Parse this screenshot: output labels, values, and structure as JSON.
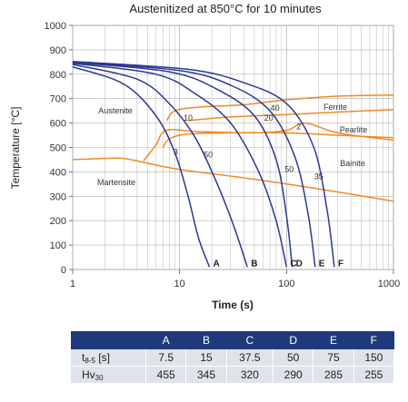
{
  "chart_data": {
    "type": "line",
    "title": "Austenitized at 850°C for 10 minutes",
    "xlabel": "Time (s)",
    "ylabel": "Temperature [°C]",
    "xscale": "log",
    "xlim": [
      1,
      1000
    ],
    "ylim": [
      0,
      1000
    ],
    "x_ticks": [
      "1",
      "10",
      "100",
      "1000"
    ],
    "y_ticks": [
      "0",
      "100",
      "200",
      "300",
      "400",
      "500",
      "600",
      "700",
      "800",
      "900",
      "1000"
    ],
    "grid": true,
    "phase_labels": [
      "Austenite",
      "Ferrite",
      "Pearlite",
      "Bainite",
      "Martensite"
    ],
    "cooling_curves": [
      {
        "name": "A",
        "x": [
          1,
          3,
          6,
          9,
          12,
          15,
          19
        ],
        "y": [
          830,
          760,
          630,
          480,
          300,
          130,
          10
        ]
      },
      {
        "name": "B",
        "x": [
          1,
          4,
          8,
          14,
          22,
          32,
          43
        ],
        "y": [
          840,
          780,
          680,
          540,
          360,
          180,
          10
        ]
      },
      {
        "name": "C",
        "x": [
          1,
          6,
          14,
          30,
          55,
          80,
          100
        ],
        "y": [
          845,
          800,
          720,
          600,
          400,
          200,
          10
        ]
      },
      {
        "name": "D",
        "x": [
          1,
          8,
          22,
          50,
          80,
          100,
          113
        ],
        "y": [
          848,
          810,
          740,
          630,
          450,
          220,
          10
        ]
      },
      {
        "name": "E",
        "x": [
          1,
          10,
          30,
          70,
          120,
          160,
          185
        ],
        "y": [
          850,
          815,
          755,
          650,
          460,
          220,
          10
        ]
      },
      {
        "name": "F",
        "x": [
          1,
          12,
          40,
          100,
          180,
          240,
          280
        ],
        "y": [
          852,
          820,
          765,
          680,
          500,
          240,
          10
        ]
      }
    ],
    "curve_labels": [
      {
        "text": "3",
        "x": 9.2,
        "y": 470
      },
      {
        "text": "10",
        "x": 12,
        "y": 610
      },
      {
        "text": "50",
        "x": 18.5,
        "y": 460
      },
      {
        "text": "20",
        "x": 68,
        "y": 610
      },
      {
        "text": "40",
        "x": 78,
        "y": 650
      },
      {
        "text": "2",
        "x": 130,
        "y": 575
      },
      {
        "text": "50",
        "x": 106,
        "y": 400
      },
      {
        "text": "35",
        "x": 200,
        "y": 370
      }
    ],
    "transformation_lines": [
      {
        "name": "Ferrite start",
        "x": [
          7.6,
          9,
          15,
          40,
          100,
          300,
          1000
        ],
        "y": [
          610,
          650,
          665,
          675,
          695,
          710,
          715
        ]
      },
      {
        "name": "Pearlite start",
        "x": [
          12,
          30,
          100,
          300,
          1000
        ],
        "y": [
          610,
          625,
          635,
          645,
          655
        ]
      },
      {
        "name": "Bainite start",
        "x": [
          7,
          8,
          12,
          30,
          100,
          300,
          1000
        ],
        "y": [
          500,
          535,
          555,
          560,
          560,
          550,
          540
        ]
      },
      {
        "name": "Bainite finish",
        "x": [
          4.6,
          6,
          7.5,
          15,
          50,
          100,
          150,
          300,
          1000
        ],
        "y": [
          445,
          510,
          570,
          565,
          560,
          570,
          600,
          560,
          530
        ]
      },
      {
        "name": "Martensite start",
        "x": [
          1,
          2,
          3,
          4.5,
          10,
          50,
          200,
          1000
        ],
        "y": [
          450,
          455,
          455,
          440,
          410,
          370,
          330,
          280
        ]
      }
    ]
  },
  "table": {
    "headers": [
      "A",
      "B",
      "C",
      "D",
      "E",
      "F"
    ],
    "row1_label": "t",
    "row1_sub": "8-5",
    "row1_unit": " [s]",
    "row1_values": [
      "7.5",
      "15",
      "37.5",
      "50",
      "75",
      "150"
    ],
    "row2_label": "Hv",
    "row2_sub": "30",
    "row2_values": [
      "455",
      "345",
      "320",
      "290",
      "285",
      "255"
    ]
  },
  "colors": {
    "cooling": "#2b3990",
    "transformation": "#f08a24",
    "grid": "#b5b5b5",
    "table_header": "#1f3a7a",
    "table_body": "#dfe3ea"
  }
}
